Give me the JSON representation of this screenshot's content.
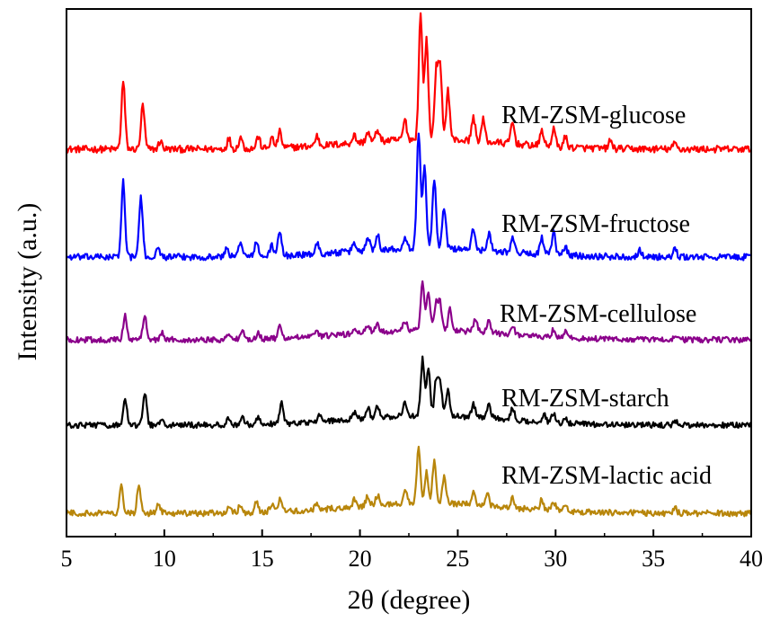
{
  "chart_data": {
    "type": "line",
    "xlabel": "2θ (degree)",
    "ylabel": "Intensity (a.u.)",
    "xlim": [
      5,
      40
    ],
    "x_ticks": [
      5,
      10,
      15,
      20,
      25,
      30,
      35,
      40
    ],
    "x_tick_labels": [
      "5",
      "10",
      "15",
      "20",
      "25",
      "30",
      "35",
      "40"
    ],
    "y_ticks_shown": false,
    "grid": false,
    "legend": "inline labels next to each trace",
    "series": [
      {
        "name": "RM-ZSM-glucose",
        "color": "#ff0000",
        "baseline": 0.5,
        "peaks": [
          [
            7.9,
            3.4
          ],
          [
            8.9,
            2.2
          ],
          [
            9.8,
            0.4
          ],
          [
            13.3,
            0.5
          ],
          [
            13.9,
            0.6
          ],
          [
            14.8,
            0.6
          ],
          [
            15.5,
            0.5
          ],
          [
            15.9,
            0.8
          ],
          [
            17.8,
            0.5
          ],
          [
            19.7,
            0.4
          ],
          [
            20.4,
            0.5
          ],
          [
            20.9,
            0.6
          ],
          [
            22.3,
            1.0
          ],
          [
            23.1,
            6.3
          ],
          [
            23.4,
            5.0
          ],
          [
            23.9,
            3.4
          ],
          [
            24.1,
            3.5
          ],
          [
            24.5,
            2.5
          ],
          [
            25.8,
            1.2
          ],
          [
            26.3,
            1.1
          ],
          [
            27.8,
            1.1
          ],
          [
            29.3,
            0.8
          ],
          [
            29.9,
            0.9
          ],
          [
            30.5,
            0.5
          ],
          [
            32.8,
            0.4
          ],
          [
            36.1,
            0.3
          ]
        ]
      },
      {
        "name": "RM-ZSM-fructose",
        "color": "#0000ff",
        "baseline": 0.5,
        "peaks": [
          [
            7.9,
            4.2
          ],
          [
            8.8,
            3.3
          ],
          [
            9.7,
            0.5
          ],
          [
            13.2,
            0.5
          ],
          [
            13.9,
            0.9
          ],
          [
            14.7,
            0.8
          ],
          [
            15.5,
            0.6
          ],
          [
            15.9,
            1.3
          ],
          [
            17.8,
            0.6
          ],
          [
            19.7,
            0.5
          ],
          [
            20.4,
            0.8
          ],
          [
            20.9,
            0.9
          ],
          [
            22.3,
            0.7
          ],
          [
            23.0,
            6.4
          ],
          [
            23.3,
            4.6
          ],
          [
            23.8,
            3.8
          ],
          [
            24.3,
            2.2
          ],
          [
            25.8,
            1.1
          ],
          [
            26.6,
            1.0
          ],
          [
            27.8,
            0.8
          ],
          [
            29.3,
            0.9
          ],
          [
            29.9,
            1.2
          ],
          [
            30.5,
            0.5
          ],
          [
            34.3,
            0.4
          ],
          [
            36.1,
            0.4
          ]
        ]
      },
      {
        "name": "RM-ZSM-cellulose",
        "color": "#8b008b",
        "baseline": 0.6,
        "peaks": [
          [
            8.0,
            1.5
          ],
          [
            9.0,
            1.6
          ],
          [
            9.9,
            0.4
          ],
          [
            13.3,
            0.4
          ],
          [
            14.0,
            0.4
          ],
          [
            14.8,
            0.4
          ],
          [
            15.9,
            0.7
          ],
          [
            17.8,
            0.3
          ],
          [
            19.7,
            0.3
          ],
          [
            20.4,
            0.5
          ],
          [
            20.9,
            0.5
          ],
          [
            22.3,
            0.6
          ],
          [
            23.2,
            3.0
          ],
          [
            23.5,
            2.4
          ],
          [
            23.9,
            1.7
          ],
          [
            24.1,
            1.6
          ],
          [
            24.6,
            1.3
          ],
          [
            25.9,
            0.8
          ],
          [
            26.6,
            0.7
          ],
          [
            27.8,
            0.6
          ],
          [
            29.9,
            0.5
          ],
          [
            30.5,
            0.4
          ],
          [
            36.1,
            0.3
          ]
        ]
      },
      {
        "name": "RM-ZSM-starch",
        "color": "#000000",
        "baseline": 0.6,
        "peaks": [
          [
            8.0,
            1.6
          ],
          [
            9.0,
            2.0
          ],
          [
            9.9,
            0.5
          ],
          [
            13.3,
            0.4
          ],
          [
            14.0,
            0.5
          ],
          [
            14.8,
            0.5
          ],
          [
            16.0,
            1.3
          ],
          [
            17.9,
            0.4
          ],
          [
            19.7,
            0.4
          ],
          [
            20.4,
            0.7
          ],
          [
            20.9,
            0.7
          ],
          [
            22.3,
            0.8
          ],
          [
            23.2,
            3.5
          ],
          [
            23.5,
            2.8
          ],
          [
            23.9,
            2.2
          ],
          [
            24.1,
            2.0
          ],
          [
            24.5,
            1.6
          ],
          [
            25.8,
            0.8
          ],
          [
            26.6,
            0.8
          ],
          [
            27.8,
            0.7
          ],
          [
            29.4,
            0.5
          ],
          [
            29.9,
            0.6
          ],
          [
            30.5,
            0.4
          ],
          [
            36.1,
            0.3
          ]
        ]
      },
      {
        "name": "RM-ZSM-lactic acid",
        "color": "#b8860b",
        "baseline": 0.6,
        "peaks": [
          [
            7.8,
            1.8
          ],
          [
            8.7,
            1.6
          ],
          [
            9.7,
            0.5
          ],
          [
            13.3,
            0.4
          ],
          [
            13.9,
            0.5
          ],
          [
            14.7,
            0.6
          ],
          [
            15.5,
            0.5
          ],
          [
            15.9,
            0.7
          ],
          [
            17.8,
            0.4
          ],
          [
            19.7,
            0.4
          ],
          [
            20.4,
            0.6
          ],
          [
            20.9,
            0.6
          ],
          [
            22.3,
            0.8
          ],
          [
            23.0,
            3.2
          ],
          [
            23.4,
            1.8
          ],
          [
            23.8,
            2.4
          ],
          [
            24.3,
            1.5
          ],
          [
            25.8,
            0.8
          ],
          [
            26.5,
            0.7
          ],
          [
            27.8,
            0.6
          ],
          [
            29.3,
            0.6
          ],
          [
            29.9,
            0.5
          ],
          [
            30.5,
            0.4
          ],
          [
            36.1,
            0.3
          ]
        ]
      }
    ]
  }
}
